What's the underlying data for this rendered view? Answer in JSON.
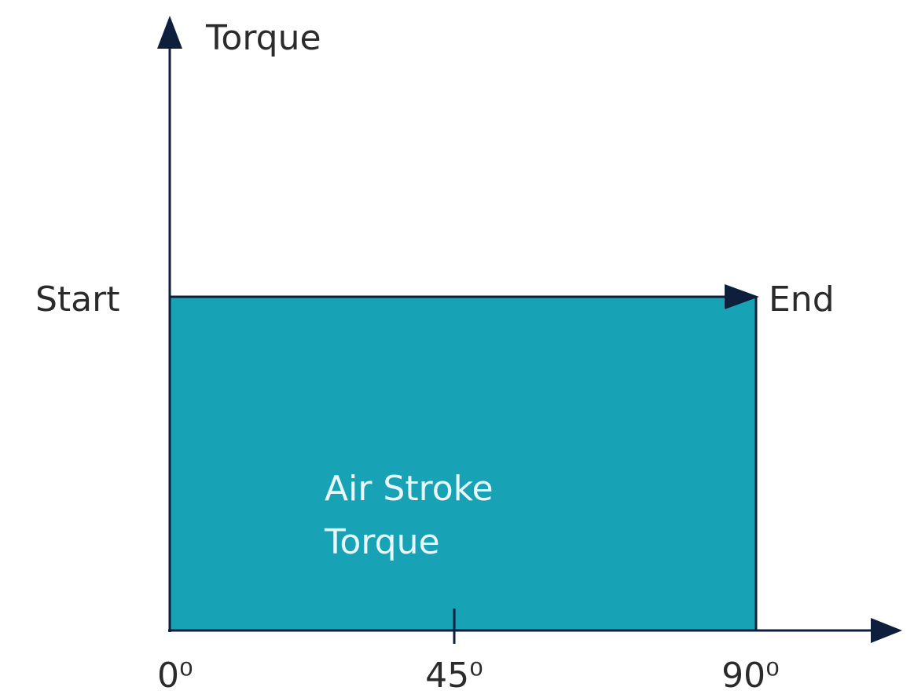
{
  "y_axis_label": "Torque",
  "start_label": "Start",
  "end_label": "End",
  "region_label": [
    "Air Stroke",
    "Torque"
  ],
  "x_labels": [
    "0⁰",
    "45⁰",
    "90⁰"
  ]
}
